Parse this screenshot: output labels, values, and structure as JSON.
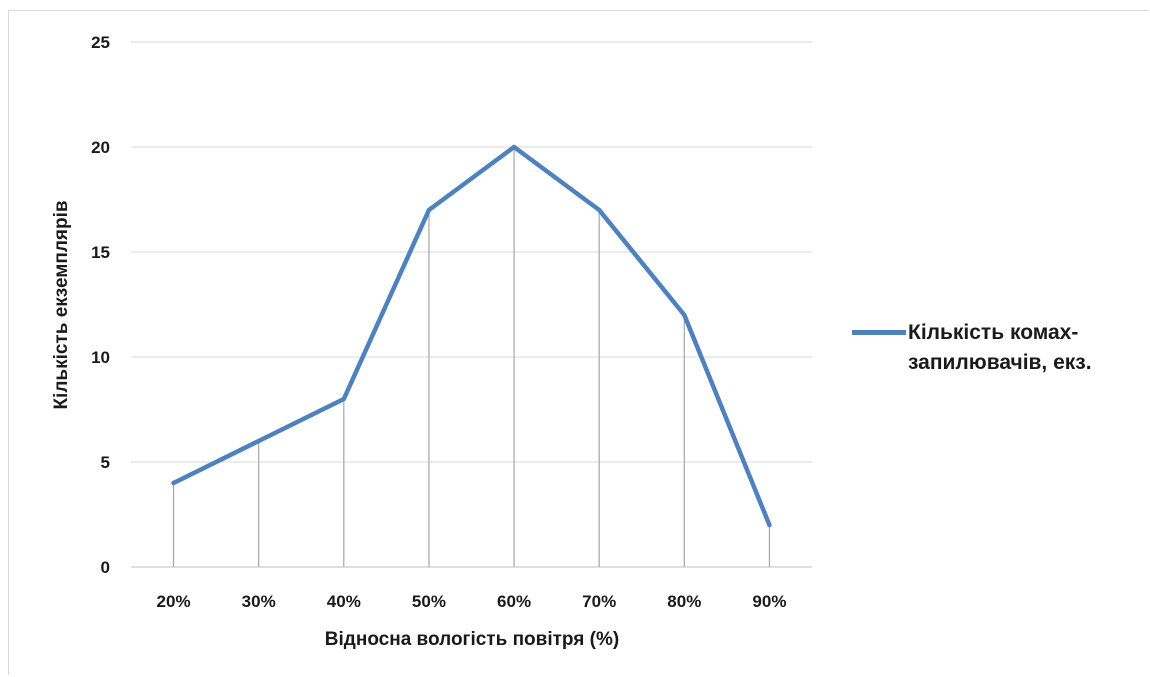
{
  "chart_data": {
    "type": "line",
    "categories": [
      "20%",
      "30%",
      "40%",
      "50%",
      "60%",
      "70%",
      "80%",
      "90%"
    ],
    "series": [
      {
        "name": "Кількість комах-запилювачів, екз.",
        "values": [
          4,
          6,
          8,
          17,
          20,
          17,
          12,
          2
        ],
        "color": "#4f81bd"
      }
    ],
    "xlabel": "Відносна вологість повітря (%)",
    "ylabel": "Кількість екземплярів",
    "ylim": [
      0,
      25
    ],
    "yticks": [
      "0",
      "5",
      "10",
      "15",
      "20",
      "25"
    ],
    "grid": true,
    "drop_lines": true,
    "legend_position": "right"
  }
}
